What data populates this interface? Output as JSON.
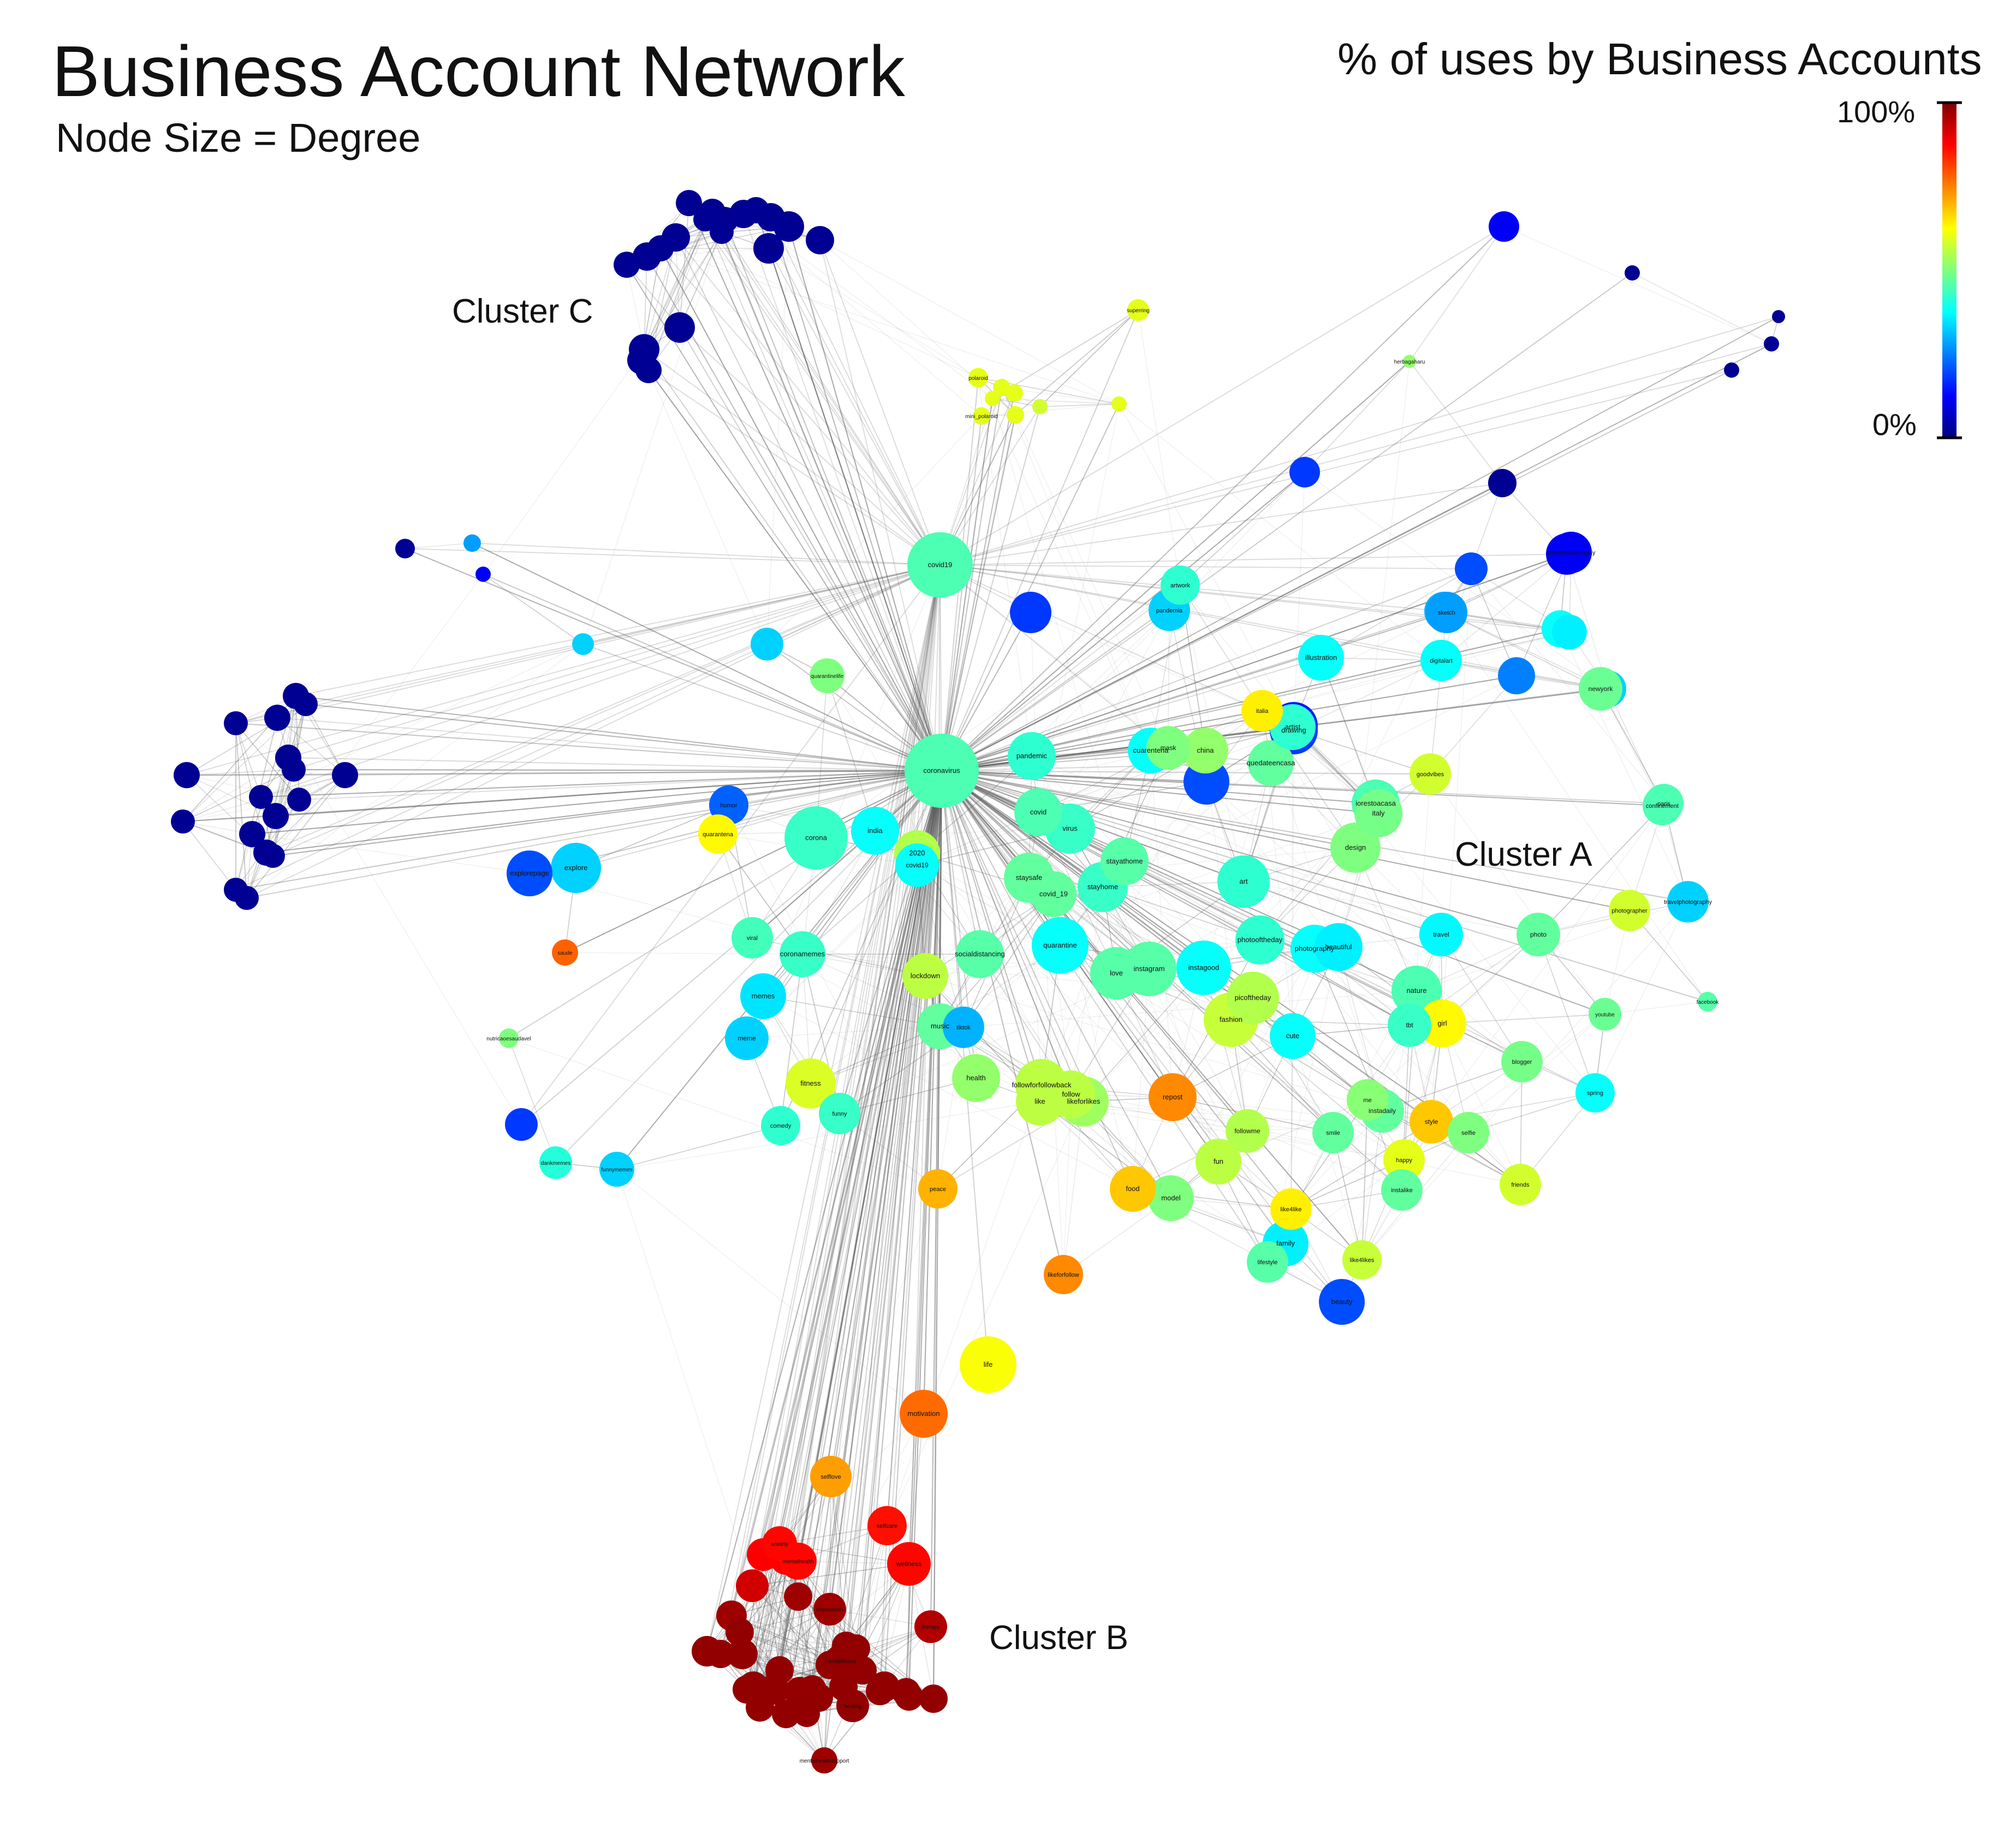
{
  "title": "Business Account Network",
  "subtitle": "Node Size = Degree",
  "colorbar": {
    "title": "% of uses by Business Accounts",
    "max_label": "100%",
    "min_label": "0%",
    "colormap": [
      "#00007f",
      "#0000ff",
      "#007fff",
      "#00ffff",
      "#7fff7f",
      "#ffff00",
      "#ff7f00",
      "#ff0000",
      "#7f0000"
    ]
  },
  "clusters": [
    {
      "id": "A",
      "label": "Cluster A"
    },
    {
      "id": "B",
      "label": "Cluster B"
    },
    {
      "id": "C",
      "label": "Cluster C"
    }
  ],
  "nodes": [
    {
      "label": "coronavirus",
      "value": 0.45
    },
    {
      "label": "covid19",
      "value": 0.45
    },
    {
      "label": "corona",
      "value": 0.43
    },
    {
      "label": "india",
      "value": 0.38
    },
    {
      "label": "2020",
      "value": 0.55
    },
    {
      "label": "covid19",
      "value": 0.38
    },
    {
      "label": "pandemic",
      "value": 0.42
    },
    {
      "label": "covid",
      "value": 0.45
    },
    {
      "label": "virus",
      "value": 0.43
    },
    {
      "label": "staysafe",
      "value": 0.47
    },
    {
      "label": "covid_19",
      "value": 0.47
    },
    {
      "label": "stayathome",
      "value": 0.46
    },
    {
      "label": "stayhome",
      "value": 0.43
    },
    {
      "label": "quarantine",
      "value": 0.38
    },
    {
      "label": "socialdistancing",
      "value": 0.46
    },
    {
      "label": "love",
      "value": 0.46
    },
    {
      "label": "instagram",
      "value": 0.46
    },
    {
      "label": "instagood",
      "value": 0.38
    },
    {
      "label": "art",
      "value": 0.42
    },
    {
      "label": "photooftheday",
      "value": 0.42
    },
    {
      "label": "photography",
      "value": 0.38
    },
    {
      "label": "beautiful",
      "value": 0.36
    },
    {
      "label": "picoftheday",
      "value": 0.55
    },
    {
      "label": "fashion",
      "value": 0.57
    },
    {
      "label": "cute",
      "value": 0.38
    },
    {
      "label": "nature",
      "value": 0.45
    },
    {
      "label": "tbt",
      "value": 0.43
    },
    {
      "label": "girl",
      "value": 0.63
    },
    {
      "label": "travel",
      "value": 0.37
    },
    {
      "label": "photo",
      "value": 0.47
    },
    {
      "label": "photographer",
      "value": 0.58
    },
    {
      "label": "travelphotography",
      "value": 0.33
    },
    {
      "label": "facebook",
      "value": 0.46
    },
    {
      "label": "youtube",
      "value": 0.48
    },
    {
      "label": "blogger",
      "value": 0.49
    },
    {
      "label": "spring",
      "value": 0.38
    },
    {
      "label": "me",
      "value": 0.51
    },
    {
      "label": "instadaily",
      "value": 0.47
    },
    {
      "label": "style",
      "value": 0.68
    },
    {
      "label": "selfie",
      "value": 0.5
    },
    {
      "label": "smile",
      "value": 0.47
    },
    {
      "label": "followme",
      "value": 0.55
    },
    {
      "label": "fun",
      "value": 0.56
    },
    {
      "label": "happy",
      "value": 0.6
    },
    {
      "label": "instalike",
      "value": 0.47
    },
    {
      "label": "friends",
      "value": 0.58
    },
    {
      "label": "like4like",
      "value": 0.64
    },
    {
      "label": "family",
      "value": 0.36
    },
    {
      "label": "lifestyle",
      "value": 0.46
    },
    {
      "label": "like4likes",
      "value": 0.57
    },
    {
      "label": "beauty",
      "value": 0.2
    },
    {
      "label": "model",
      "value": 0.5
    },
    {
      "label": "food",
      "value": 0.68
    },
    {
      "label": "repost",
      "value": 0.74
    },
    {
      "label": "follow",
      "value": 0.56
    },
    {
      "label": "like",
      "value": 0.56
    },
    {
      "label": "likeforlikes",
      "value": 0.53
    },
    {
      "label": "followforfollowback",
      "value": 0.56
    },
    {
      "label": "health",
      "value": 0.52
    },
    {
      "label": "music",
      "value": 0.47
    },
    {
      "label": "tiktok",
      "value": 0.3
    },
    {
      "label": "lockdown",
      "value": 0.56
    },
    {
      "label": "peace",
      "value": 0.7
    },
    {
      "label": "likeforfollow",
      "value": 0.74
    },
    {
      "label": "life",
      "value": 0.62
    },
    {
      "label": "motivation",
      "value": 0.77
    },
    {
      "label": "selflove",
      "value": 0.72
    },
    {
      "label": "selfcare",
      "value": 0.86
    },
    {
      "label": "anxiety",
      "value": 0.87
    },
    {
      "label": "mentalhealth",
      "value": 0.87
    },
    {
      "label": "wellness",
      "value": 0.87
    },
    {
      "label": "mentalhealthsupport",
      "value": 0.97
    },
    {
      "label": "therapy",
      "value": 0.95
    },
    {
      "label": "depression",
      "value": 0.97
    },
    {
      "label": "mentalillness",
      "value": 0.98
    },
    {
      "label": "healing",
      "value": 0.98
    },
    {
      "label": "fitness",
      "value": 0.59
    },
    {
      "label": "funny",
      "value": 0.43
    },
    {
      "label": "comedy",
      "value": 0.42
    },
    {
      "label": "memes",
      "value": 0.35
    },
    {
      "label": "meme",
      "value": 0.33
    },
    {
      "label": "coronamemes",
      "value": 0.43
    },
    {
      "label": "viral",
      "value": 0.44
    },
    {
      "label": "dankmemes",
      "value": 0.41
    },
    {
      "label": "funnymemes",
      "value": 0.33
    },
    {
      "label": "explore",
      "value": 0.33
    },
    {
      "label": "explorepage",
      "value": 0.2
    },
    {
      "label": "humor",
      "value": 0.22
    },
    {
      "label": "quarantena",
      "value": 0.63
    },
    {
      "label": "saude",
      "value": 0.78
    },
    {
      "label": "nutricaoesaudavel",
      "value": 0.5
    },
    {
      "label": "quarantinelife",
      "value": 0.5
    },
    {
      "label": "quedateencasa",
      "value": 0.47
    },
    {
      "label": "china",
      "value": 0.52
    },
    {
      "label": "mask",
      "value": 0.5
    },
    {
      "label": "cuarentena",
      "value": 0.38
    },
    {
      "label": "italia",
      "value": 0.64
    },
    {
      "label": "artist",
      "value": 0.42
    },
    {
      "label": "drawing",
      "value": 0.18
    },
    {
      "label": "iorestoacasa",
      "value": 0.45
    },
    {
      "label": "italy",
      "value": 0.49
    },
    {
      "label": "design",
      "value": 0.5
    },
    {
      "label": "goodvibes",
      "value": 0.58
    },
    {
      "label": "artwork",
      "value": 0.42
    },
    {
      "label": "pandemia",
      "value": 0.33
    },
    {
      "label": "illustration",
      "value": 0.38
    },
    {
      "label": "digitalart",
      "value": 0.38
    },
    {
      "label": "sketch",
      "value": 0.28
    },
    {
      "label": "paris",
      "value": 0.45
    },
    {
      "label": "confinement",
      "value": 0.45
    },
    {
      "label": "newyork",
      "value": 0.48
    },
    {
      "label": "streetphotography",
      "value": 0.12
    },
    {
      "label": "superring",
      "value": 0.6
    },
    {
      "label": "herbagaharu",
      "value": 0.52
    },
    {
      "label": "polaroid",
      "value": 0.6
    },
    {
      "label": "mini_polaroid",
      "value": 0.6
    }
  ]
}
